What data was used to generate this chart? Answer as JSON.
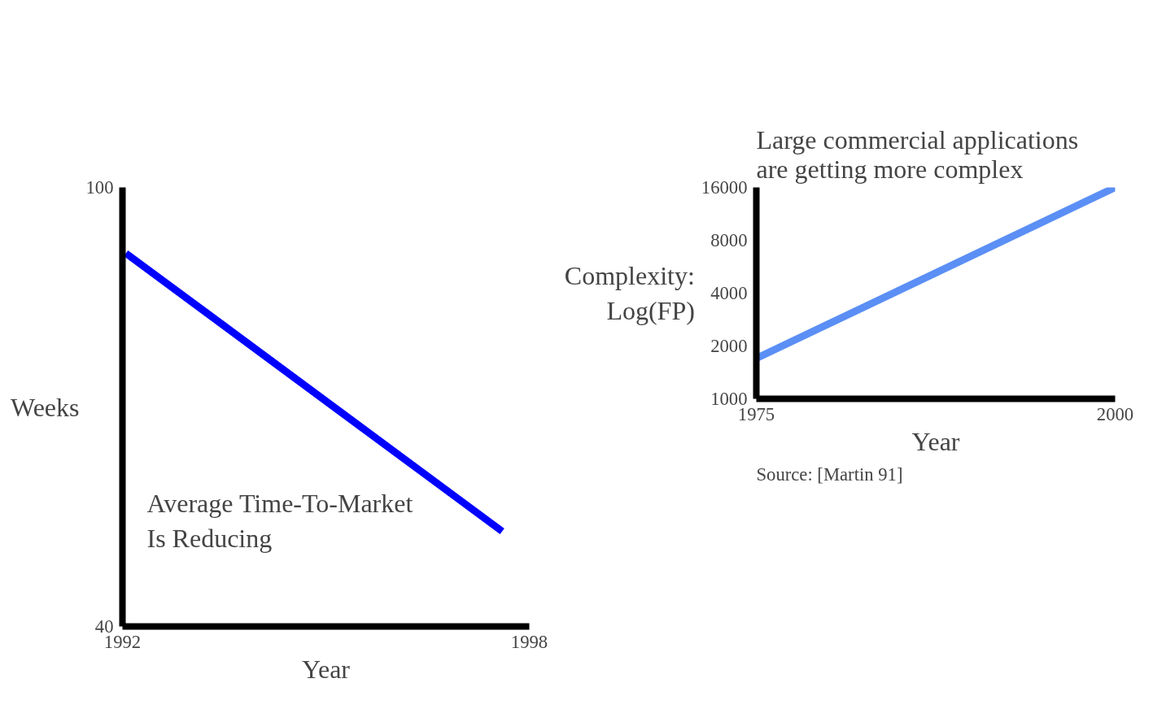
{
  "chart_data": [
    {
      "type": "line",
      "xlabel": "Year",
      "ylabel": "Weeks",
      "xlim": [
        1992,
        1998
      ],
      "ylim": [
        40,
        100
      ],
      "xticks": [
        1992,
        1998
      ],
      "yticks": [
        40,
        100
      ],
      "grid": false,
      "annotations": [
        "Average Time-To-Market\nIs Reducing"
      ],
      "series": [
        {
          "color": "#0000ff",
          "x": [
            1992.05,
            1997.6
          ],
          "values": [
            91,
            53
          ]
        }
      ]
    },
    {
      "type": "line",
      "title": "Large commercial applications\nare getting more complex",
      "xlabel": "Year",
      "ylabel": "Complexity:\nLog(FP)",
      "log": "y",
      "xlim": [
        1975,
        2000
      ],
      "ylim": [
        1000,
        16000
      ],
      "xticks": [
        1975,
        2000
      ],
      "yticks": [
        1000,
        2000,
        4000,
        8000,
        16000
      ],
      "grid": false,
      "annotations": [
        "Source: [Martin 91]"
      ],
      "series": [
        {
          "color": "#5b8ff5",
          "x": [
            1975,
            2000
          ],
          "values": [
            1700,
            16000
          ]
        }
      ]
    }
  ]
}
